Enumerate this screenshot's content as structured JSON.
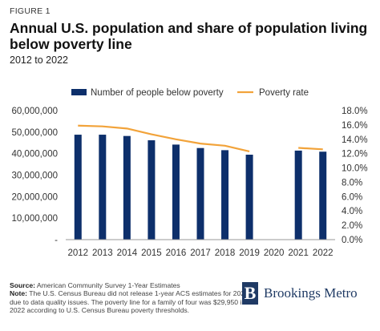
{
  "header": {
    "figure_label": "FIGURE 1",
    "title": "Annual U.S. population and share of population living below poverty line",
    "subtitle": "2012 to 2022"
  },
  "footer": {
    "source_label": "Source:",
    "source_text": " American Community Survey 1-Year Estimates",
    "note_label": "Note:",
    "note_text": " The U.S. Census Bureau did not release 1-year ACS estimates for 2020 due to data quality issues. The poverty line for a family of four was $29,950 in 2022 according to U.S. Census Bureau poverty thresholds.",
    "logo_letter": "B",
    "logo_text": "Brookings Metro"
  },
  "colors": {
    "bar": "#0d2f6b",
    "line": "#f2a33a",
    "axis": "#999999",
    "text": "#333333"
  },
  "chart_data": {
    "type": "bar",
    "categories": [
      "2012",
      "2013",
      "2014",
      "2015",
      "2016",
      "2017",
      "2018",
      "2019",
      "2020",
      "2021",
      "2022"
    ],
    "series": [
      {
        "name": "Number of people below poverty",
        "type": "bar",
        "axis": "left",
        "values": [
          48800000,
          48800000,
          48200000,
          46200000,
          44200000,
          42600000,
          41600000,
          39500000,
          null,
          41400000,
          40900000
        ]
      },
      {
        "name": "Poverty rate",
        "type": "line",
        "axis": "right",
        "values": [
          0.159,
          0.158,
          0.155,
          0.147,
          0.14,
          0.134,
          0.131,
          0.123,
          null,
          0.128,
          0.126
        ]
      }
    ],
    "y_left": {
      "min": 0,
      "max": 60000000,
      "ticks": [
        0,
        10000000,
        20000000,
        30000000,
        40000000,
        50000000,
        60000000
      ],
      "tick_labels": [
        "-",
        "10,000,000",
        "20,000,000",
        "30,000,000",
        "40,000,000",
        "50,000,000",
        "60,000,000"
      ]
    },
    "y_right": {
      "min": 0,
      "max": 0.18,
      "ticks": [
        0,
        0.02,
        0.04,
        0.06,
        0.08,
        0.1,
        0.12,
        0.14,
        0.16,
        0.18
      ],
      "tick_labels": [
        "0.0%",
        "2.0%",
        "4.0%",
        "6.0%",
        "8.0%",
        "10.0%",
        "12.0%",
        "14.0%",
        "16.0%",
        "18.0%"
      ]
    },
    "legend_position": "top",
    "grid": false
  }
}
